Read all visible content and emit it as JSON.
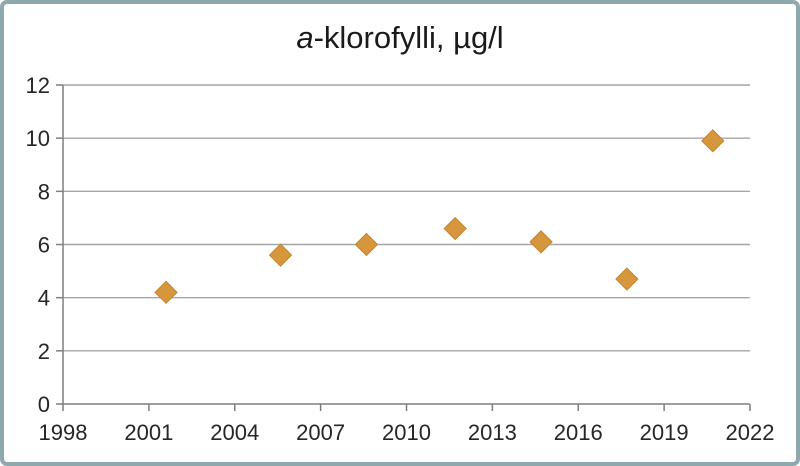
{
  "chart_data": {
    "type": "scatter",
    "title": "a-klorofylli, µg/l",
    "title_italic": "a",
    "title_rest": "-klorofylli, µg/l",
    "x": [
      2001.6,
      2005.6,
      2008.6,
      2011.7,
      2014.7,
      2017.7,
      2020.7
    ],
    "values": [
      4.2,
      5.6,
      6.0,
      6.6,
      6.1,
      4.7,
      9.9
    ],
    "xlabel": "",
    "ylabel": "",
    "xlim": [
      1998,
      2022
    ],
    "ylim": [
      0,
      12
    ],
    "xticks": [
      1998,
      2001,
      2004,
      2007,
      2010,
      2013,
      2016,
      2019,
      2022
    ],
    "yticks": [
      0,
      2,
      4,
      6,
      8,
      10,
      12
    ],
    "grid": "horizontal",
    "legend": "none",
    "marker": "diamond",
    "colors": {
      "marker_fill": "#D6963B",
      "marker_stroke": "#C2842F",
      "gridline": "#A6A6A6",
      "axis": "#7F7F7F",
      "tick_label": "#262626",
      "title": "#1A1A1A",
      "frame_border": "#8EA9AD",
      "background": "#FFFFFF"
    }
  }
}
